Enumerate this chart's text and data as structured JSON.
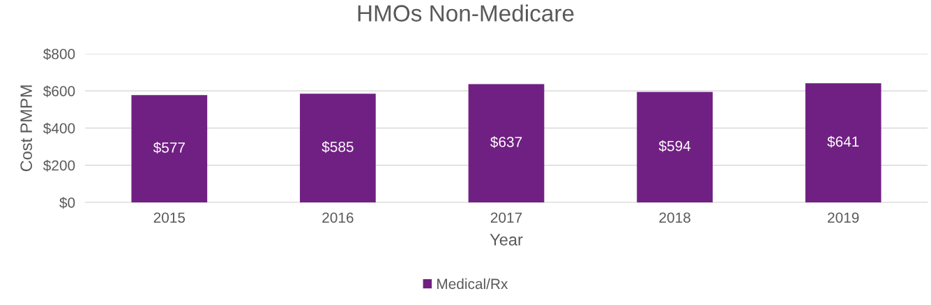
{
  "chart_data": {
    "type": "bar",
    "title": "HMOs Non-Medicare",
    "xlabel": "Year",
    "ylabel": "Cost PMPM",
    "categories": [
      "2015",
      "2016",
      "2017",
      "2018",
      "2019"
    ],
    "series": [
      {
        "name": "Medical/Rx",
        "color": "#702082",
        "values": [
          577,
          585,
          637,
          594,
          641
        ],
        "value_labels": [
          "$577",
          "$585",
          "$637",
          "$594",
          "$641"
        ]
      }
    ],
    "ylim": [
      0,
      800
    ],
    "yticks": [
      {
        "value": 0,
        "label": "$0"
      },
      {
        "value": 200,
        "label": "$200"
      },
      {
        "value": 400,
        "label": "$400"
      },
      {
        "value": 600,
        "label": "$600"
      },
      {
        "value": 800,
        "label": "$800"
      }
    ],
    "grid": "y",
    "legend": "bottom"
  }
}
